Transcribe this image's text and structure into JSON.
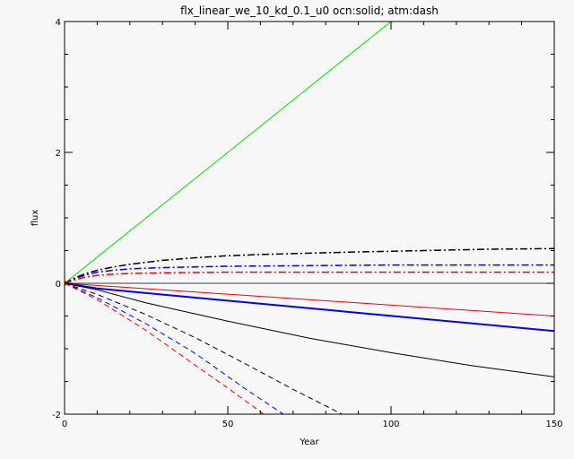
{
  "chart_data": {
    "type": "line",
    "title": "flx_linear_we_10_kd_0.1_u0 ocn:solid; atm:dash",
    "xlabel": "Year",
    "ylabel": "flux",
    "xlim": [
      0,
      150
    ],
    "ylim": [
      -2,
      4
    ],
    "xticks": [
      0,
      50,
      100,
      150
    ],
    "yticks": [
      -2,
      0,
      2,
      4
    ],
    "xtick_labels": [
      "0",
      "50",
      "100",
      "150"
    ],
    "ytick_labels": [
      "-2",
      "0",
      "2",
      "4"
    ],
    "grid": false,
    "legend": "none",
    "series": [
      {
        "color": "#00dd00",
        "style": "solid",
        "width": 1,
        "x": [
          0,
          25,
          50,
          75,
          100
        ],
        "y": [
          0,
          1.0,
          2.0,
          3.0,
          4.0
        ]
      },
      {
        "color": "#000000",
        "style": "dashdot",
        "width": 1.5,
        "x": [
          0,
          3,
          6,
          10,
          15,
          20,
          30,
          40,
          50,
          60,
          75,
          90,
          110,
          130,
          150
        ],
        "y": [
          0,
          0.08,
          0.14,
          0.2,
          0.25,
          0.29,
          0.35,
          0.39,
          0.42,
          0.44,
          0.46,
          0.48,
          0.5,
          0.52,
          0.53
        ]
      },
      {
        "color": "#0000ee",
        "style": "dashdot",
        "width": 1.5,
        "x": [
          0,
          3,
          6,
          10,
          15,
          20,
          30,
          50,
          75,
          100,
          150
        ],
        "y": [
          0,
          0.07,
          0.12,
          0.17,
          0.2,
          0.22,
          0.24,
          0.26,
          0.27,
          0.28,
          0.28
        ]
      },
      {
        "color": "#ee0000",
        "style": "dashdot",
        "width": 1.5,
        "x": [
          0,
          3,
          6,
          10,
          15,
          20,
          30,
          50,
          75,
          100,
          150
        ],
        "y": [
          0,
          0.05,
          0.09,
          0.12,
          0.14,
          0.15,
          0.16,
          0.17,
          0.17,
          0.17,
          0.17
        ]
      },
      {
        "color": "#000000",
        "style": "solid",
        "width": 0.8,
        "x": [
          0,
          150
        ],
        "y": [
          0,
          0
        ]
      },
      {
        "color": "#ee0000",
        "style": "solid",
        "width": 1,
        "x": [
          0,
          150
        ],
        "y": [
          0,
          -0.5
        ]
      },
      {
        "color": "#0000ee",
        "style": "solid",
        "width": 2,
        "x": [
          0,
          10,
          150
        ],
        "y": [
          0,
          -0.08,
          -0.73
        ]
      },
      {
        "color": "#000000",
        "style": "solid",
        "width": 1,
        "x": [
          0,
          10,
          25,
          50,
          75,
          100,
          125,
          150
        ],
        "y": [
          0,
          -0.1,
          -0.3,
          -0.58,
          -0.84,
          -1.06,
          -1.26,
          -1.43
        ]
      },
      {
        "color": "#000000",
        "style": "dash",
        "width": 1,
        "x": [
          0,
          10,
          25,
          40,
          55,
          70,
          85
        ],
        "y": [
          0,
          -0.17,
          -0.48,
          -0.83,
          -1.22,
          -1.62,
          -2.0
        ]
      },
      {
        "color": "#0000ee",
        "style": "dash",
        "width": 1,
        "x": [
          0,
          10,
          25,
          40,
          55,
          67
        ],
        "y": [
          0,
          -0.22,
          -0.62,
          -1.07,
          -1.6,
          -2.0
        ]
      },
      {
        "color": "#ee0000",
        "style": "dash",
        "width": 1,
        "x": [
          0,
          10,
          25,
          40,
          50,
          61
        ],
        "y": [
          0,
          -0.25,
          -0.72,
          -1.25,
          -1.6,
          -2.0
        ]
      }
    ]
  }
}
